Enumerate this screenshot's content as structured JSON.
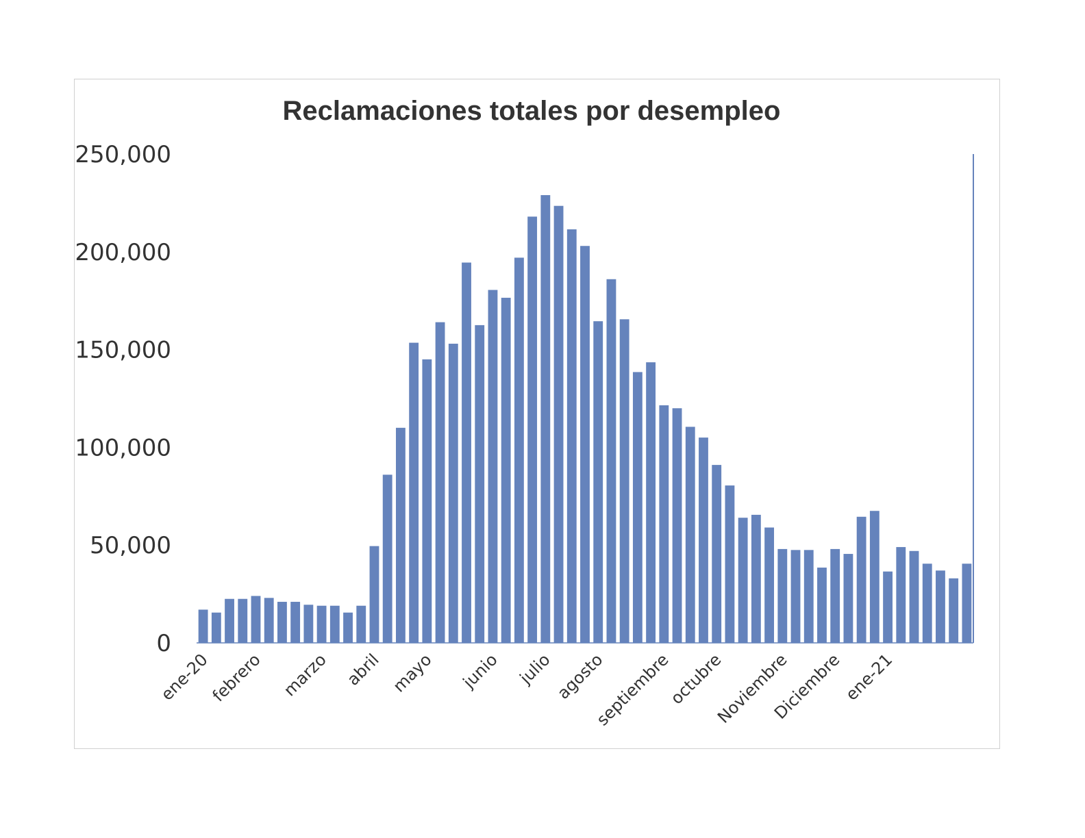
{
  "chart_data": {
    "type": "bar",
    "title": "Reclamaciones totales por desempleo",
    "xlabel": "",
    "ylabel": "",
    "ylim": [
      0,
      250000
    ],
    "yticks": [
      0,
      50000,
      100000,
      150000,
      200000,
      250000
    ],
    "ytick_labels": [
      "0",
      "50,000",
      "100,000",
      "150,000",
      "200,000",
      "250,000"
    ],
    "grid": false,
    "legend": "none",
    "bar_color": "#6583BC",
    "axis_color": "#6583BC",
    "x_labels": [
      {
        "index": 0,
        "label": "ene-20"
      },
      {
        "index": 4,
        "label": "febrero"
      },
      {
        "index": 9,
        "label": "marzo"
      },
      {
        "index": 13,
        "label": "abril"
      },
      {
        "index": 17,
        "label": "mayo"
      },
      {
        "index": 22,
        "label": "junio"
      },
      {
        "index": 26,
        "label": "julio"
      },
      {
        "index": 30,
        "label": "agosto"
      },
      {
        "index": 35,
        "label": "septiembre"
      },
      {
        "index": 39,
        "label": "octubre"
      },
      {
        "index": 44,
        "label": "Noviembre"
      },
      {
        "index": 48,
        "label": "Diciembre"
      },
      {
        "index": 52,
        "label": "ene-21"
      }
    ],
    "values": [
      17000,
      15500,
      22500,
      22500,
      24000,
      23000,
      21000,
      21000,
      19500,
      19000,
      19000,
      15500,
      19000,
      49500,
      86000,
      110000,
      153500,
      145000,
      164000,
      153000,
      194500,
      162500,
      180500,
      176500,
      197000,
      218000,
      229000,
      223500,
      211500,
      203000,
      164500,
      186000,
      165500,
      138500,
      143500,
      121500,
      120000,
      110500,
      105000,
      91000,
      80500,
      64000,
      65500,
      59000,
      48000,
      47500,
      47500,
      38500,
      48000,
      45500,
      64500,
      67500,
      36500,
      49000,
      47000,
      40500,
      37000,
      33000,
      40500
    ]
  }
}
